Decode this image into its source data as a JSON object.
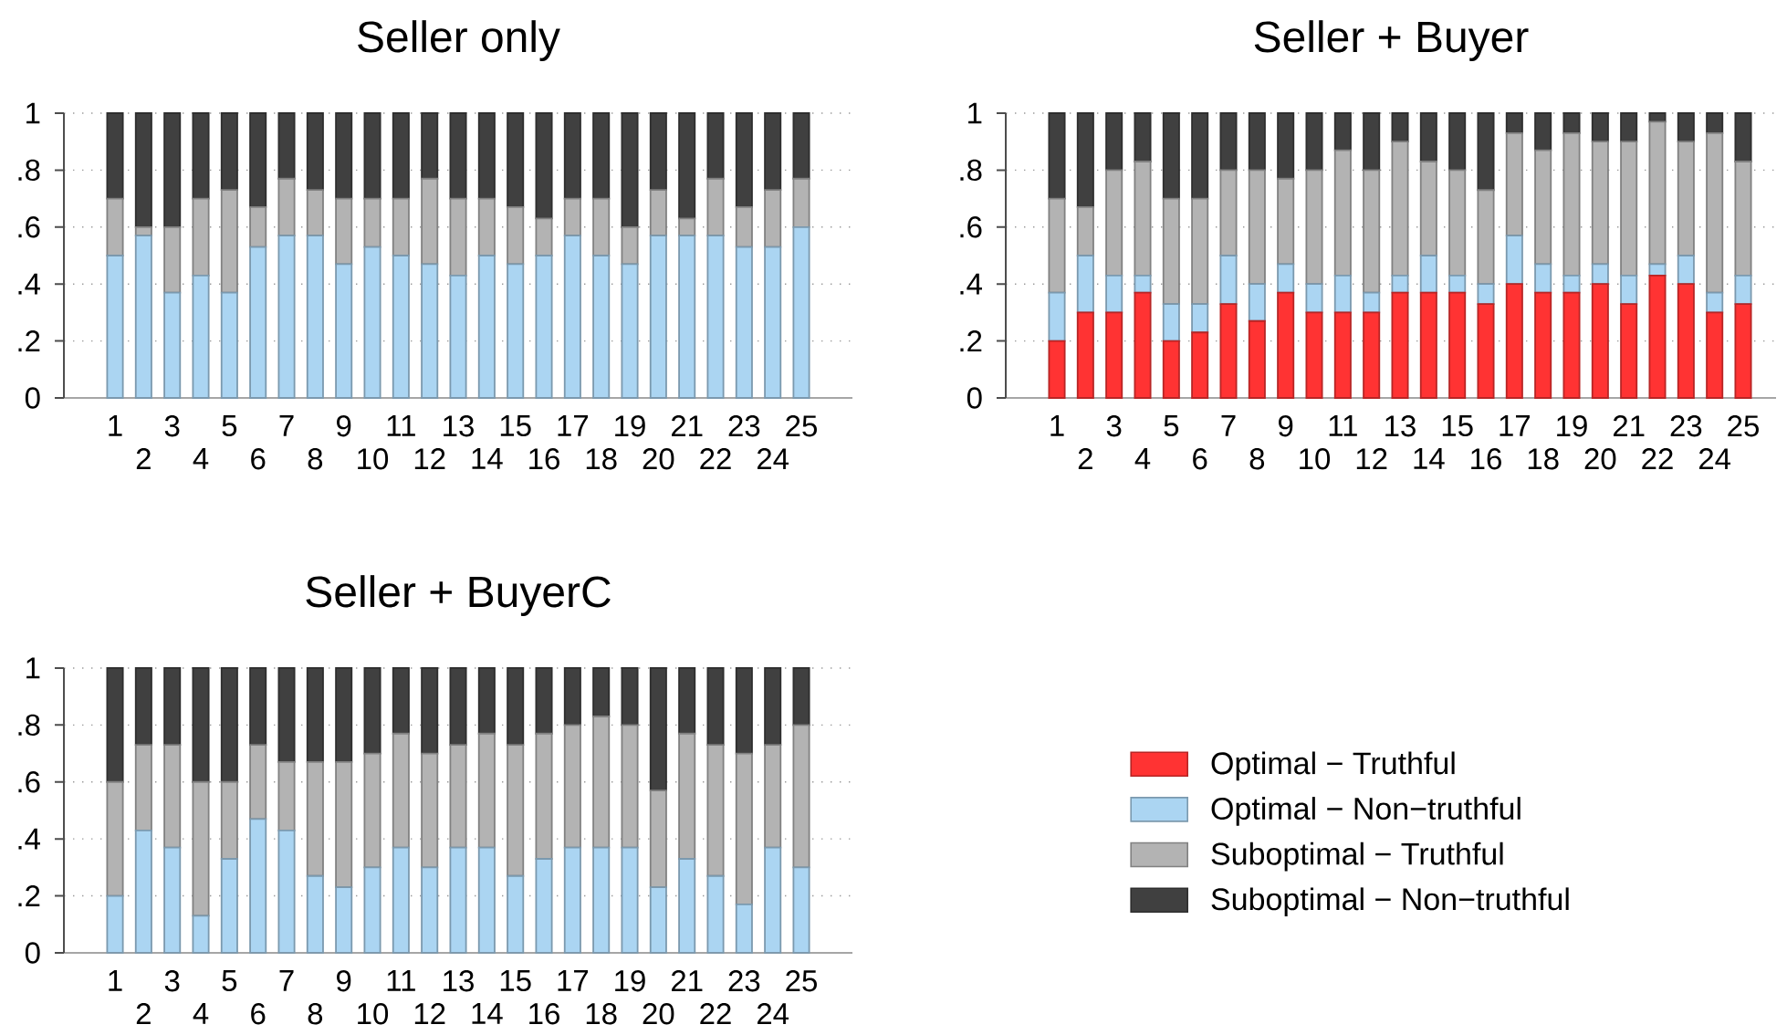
{
  "chart_data": [
    {
      "type": "bar",
      "stacked": true,
      "title": "Seller only",
      "categories": [
        "1",
        "2",
        "3",
        "4",
        "5",
        "6",
        "7",
        "8",
        "9",
        "10",
        "11",
        "12",
        "13",
        "14",
        "15",
        "16",
        "17",
        "18",
        "19",
        "20",
        "21",
        "22",
        "23",
        "24",
        "25"
      ],
      "ylim": [
        0,
        1
      ],
      "yticks": [
        0,
        {
          "value": 0.2,
          "label": ".2"
        },
        {
          "value": 0.4,
          "label": ".4"
        },
        {
          "value": 0.6,
          "label": ".6"
        },
        {
          "value": 0.8,
          "label": ".8"
        },
        1
      ],
      "grid": "y",
      "series": [
        {
          "color": "#abd5f2",
          "values": [
            0.5,
            0.57,
            0.37,
            0.43,
            0.37,
            0.53,
            0.57,
            0.57,
            0.47,
            0.53,
            0.5,
            0.47,
            0.43,
            0.5,
            0.47,
            0.5,
            0.57,
            0.5,
            0.47,
            0.57,
            0.57,
            0.57,
            0.53,
            0.53,
            0.6
          ]
        },
        {
          "color": "#b3b3b3",
          "values": [
            0.2,
            0.03,
            0.23,
            0.27,
            0.36,
            0.14,
            0.2,
            0.16,
            0.23,
            0.17,
            0.2,
            0.3,
            0.27,
            0.2,
            0.2,
            0.13,
            0.13,
            0.2,
            0.13,
            0.16,
            0.06,
            0.2,
            0.14,
            0.2,
            0.17
          ]
        },
        {
          "color": "#404040",
          "values": [
            0.3,
            0.4,
            0.4,
            0.3,
            0.27,
            0.33,
            0.23,
            0.27,
            0.3,
            0.3,
            0.3,
            0.23,
            0.3,
            0.3,
            0.33,
            0.37,
            0.3,
            0.3,
            0.4,
            0.27,
            0.37,
            0.23,
            0.33,
            0.27,
            0.23
          ]
        }
      ]
    },
    {
      "type": "bar",
      "stacked": true,
      "title": "Seller + Buyer",
      "categories": [
        "1",
        "2",
        "3",
        "4",
        "5",
        "6",
        "7",
        "8",
        "9",
        "10",
        "11",
        "12",
        "13",
        "14",
        "15",
        "16",
        "17",
        "18",
        "19",
        "20",
        "21",
        "22",
        "23",
        "24",
        "25"
      ],
      "ylim": [
        0,
        1
      ],
      "yticks": [
        0,
        {
          "value": 0.2,
          "label": ".2"
        },
        {
          "value": 0.4,
          "label": ".4"
        },
        {
          "value": 0.6,
          "label": ".6"
        },
        {
          "value": 0.8,
          "label": ".8"
        },
        1
      ],
      "grid": "y",
      "legend": "bottom",
      "series": [
        {
          "name": "Optimal − Truthful",
          "color": "#ff3333",
          "values": [
            0.2,
            0.3,
            0.3,
            0.37,
            0.2,
            0.23,
            0.33,
            0.27,
            0.37,
            0.3,
            0.3,
            0.3,
            0.37,
            0.37,
            0.37,
            0.33,
            0.4,
            0.37,
            0.37,
            0.4,
            0.33,
            0.43,
            0.4,
            0.3,
            0.33
          ]
        },
        {
          "name": "Optimal − Non−truthful",
          "color": "#abd5f2",
          "values": [
            0.17,
            0.2,
            0.13,
            0.06,
            0.13,
            0.1,
            0.17,
            0.13,
            0.1,
            0.1,
            0.13,
            0.07,
            0.06,
            0.13,
            0.06,
            0.07,
            0.17,
            0.1,
            0.06,
            0.07,
            0.1,
            0.04,
            0.1,
            0.07,
            0.1
          ]
        },
        {
          "name": "Suboptimal − Truthful",
          "color": "#b3b3b3",
          "values": [
            0.33,
            0.17,
            0.37,
            0.4,
            0.37,
            0.37,
            0.3,
            0.4,
            0.3,
            0.4,
            0.44,
            0.43,
            0.47,
            0.33,
            0.37,
            0.33,
            0.36,
            0.4,
            0.5,
            0.43,
            0.47,
            0.5,
            0.4,
            0.56,
            0.4
          ]
        },
        {
          "name": "Suboptimal − Non−truthful",
          "color": "#404040",
          "values": [
            0.3,
            0.33,
            0.2,
            0.17,
            0.3,
            0.3,
            0.2,
            0.2,
            0.23,
            0.2,
            0.13,
            0.2,
            0.1,
            0.17,
            0.2,
            0.27,
            0.07,
            0.13,
            0.07,
            0.1,
            0.1,
            0.03,
            0.1,
            0.07,
            0.17
          ]
        }
      ]
    },
    {
      "type": "bar",
      "stacked": true,
      "title": "Seller + BuyerC",
      "categories": [
        "1",
        "2",
        "3",
        "4",
        "5",
        "6",
        "7",
        "8",
        "9",
        "10",
        "11",
        "12",
        "13",
        "14",
        "15",
        "16",
        "17",
        "18",
        "19",
        "20",
        "21",
        "22",
        "23",
        "24",
        "25"
      ],
      "ylim": [
        0,
        1
      ],
      "yticks": [
        0,
        {
          "value": 0.2,
          "label": ".2"
        },
        {
          "value": 0.4,
          "label": ".4"
        },
        {
          "value": 0.6,
          "label": ".6"
        },
        {
          "value": 0.8,
          "label": ".8"
        },
        1
      ],
      "grid": "y",
      "series": [
        {
          "color": "#abd5f2",
          "values": [
            0.2,
            0.43,
            0.37,
            0.13,
            0.33,
            0.47,
            0.43,
            0.27,
            0.23,
            0.3,
            0.37,
            0.3,
            0.37,
            0.37,
            0.27,
            0.33,
            0.37,
            0.37,
            0.37,
            0.23,
            0.33,
            0.27,
            0.17,
            0.37,
            0.3
          ]
        },
        {
          "color": "#b3b3b3",
          "values": [
            0.4,
            0.3,
            0.36,
            0.47,
            0.27,
            0.26,
            0.24,
            0.4,
            0.44,
            0.4,
            0.4,
            0.4,
            0.36,
            0.4,
            0.46,
            0.44,
            0.43,
            0.46,
            0.43,
            0.34,
            0.44,
            0.46,
            0.53,
            0.36,
            0.5
          ]
        },
        {
          "color": "#404040",
          "values": [
            0.4,
            0.27,
            0.27,
            0.4,
            0.4,
            0.27,
            0.33,
            0.33,
            0.33,
            0.3,
            0.23,
            0.3,
            0.27,
            0.23,
            0.27,
            0.23,
            0.2,
            0.17,
            0.2,
            0.43,
            0.23,
            0.27,
            0.3,
            0.27,
            0.2
          ]
        }
      ]
    }
  ]
}
